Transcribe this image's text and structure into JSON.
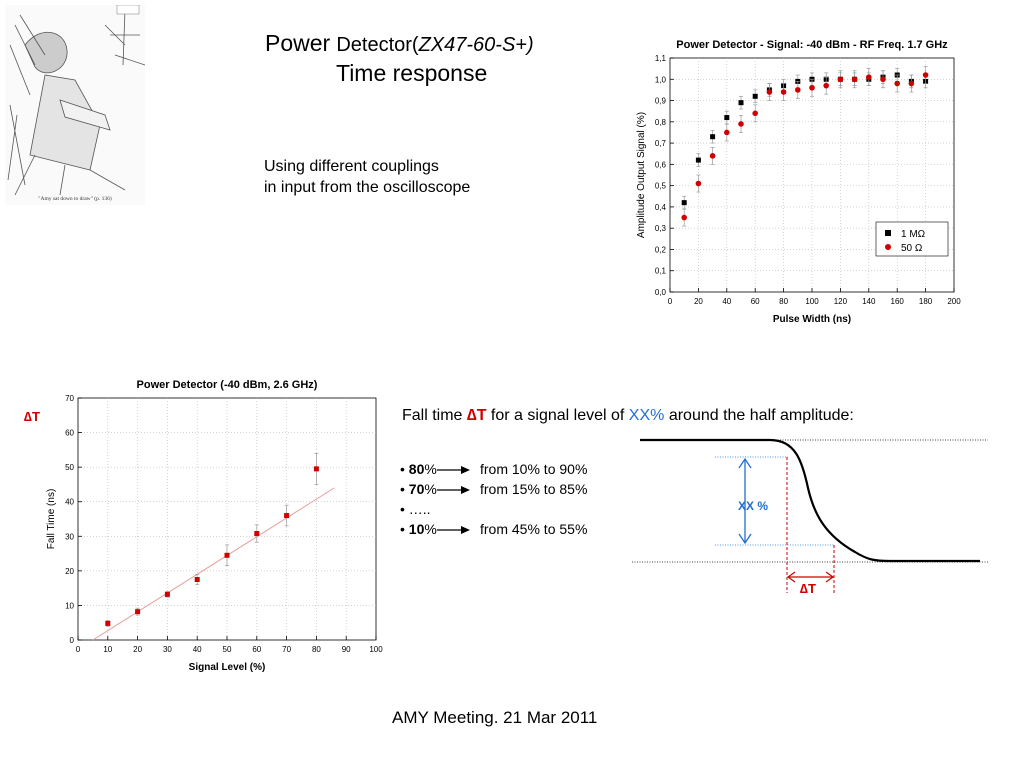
{
  "slide": {
    "title_word1": "Power",
    "title_word2": "Detector(",
    "title_model": "ZX47-60-S+)",
    "subtitle": "Time response",
    "desc_line1": "Using different couplings",
    "desc_line2": "in input from the oscilloscope",
    "footer": "AMY Meeting. 21 Mar 2011",
    "delta_t_label": "∆T",
    "fall_text_prefix": "Fall time",
    "fall_text_delta": "∆T",
    "fall_text_mid": "for a signal level of",
    "fall_text_xx": "XX%",
    "fall_text_suffix": "around the half amplitude:",
    "bullets": [
      {
        "pct": "80",
        "unit": "%",
        "range": "from 10% to 90%"
      },
      {
        "pct": "70",
        "unit": "%",
        "range": "from 15% to 85%"
      },
      {
        "pct": "…..",
        "unit": "",
        "range": ""
      },
      {
        "pct": "10",
        "unit": "%",
        "range": "from 45% to 55%"
      }
    ],
    "sketch_caption": "\"Amy sat down to draw\" (p. 136)",
    "diagram_xx_label": "XX %",
    "diagram_dt_label": "∆T",
    "colors": {
      "red": "#d00000",
      "blue": "#1f6fd0"
    }
  },
  "chart_data": [
    {
      "type": "scatter",
      "title": "Power Detector - Signal: -40 dBm - RF Freq. 1.7 GHz",
      "xlabel": "Pulse Width (ns)",
      "ylabel": "Amplitude Output Signal (%)",
      "xlim": [
        0,
        200
      ],
      "ylim": [
        0,
        1.1
      ],
      "xticks": [
        "0",
        "20",
        "40",
        "60",
        "80",
        "100",
        "120",
        "140",
        "160",
        "180",
        "200"
      ],
      "yticks": [
        "0,0",
        "0,1",
        "0,2",
        "0,3",
        "0,4",
        "0,5",
        "0,6",
        "0,7",
        "0,8",
        "0,9",
        "1,0",
        "1,1"
      ],
      "grid": true,
      "legend_position": "bottom-right",
      "series": [
        {
          "name": "1  MΩ",
          "color": "#000000",
          "marker": "square",
          "x": [
            10,
            20,
            30,
            40,
            50,
            60,
            70,
            80,
            90,
            100,
            110,
            120,
            130,
            140,
            150,
            160,
            170,
            180
          ],
          "y": [
            0.42,
            0.62,
            0.73,
            0.82,
            0.89,
            0.92,
            0.95,
            0.97,
            0.99,
            1.0,
            1.0,
            1.0,
            1.0,
            1.0,
            1.01,
            1.02,
            0.99,
            0.99
          ],
          "err": [
            0.03,
            0.03,
            0.03,
            0.03,
            0.03,
            0.03,
            0.03,
            0.03,
            0.03,
            0.03,
            0.03,
            0.03,
            0.03,
            0.03,
            0.03,
            0.03,
            0.03,
            0.03
          ]
        },
        {
          "name": "50  Ω",
          "color": "#d00000",
          "marker": "circle",
          "x": [
            10,
            20,
            30,
            40,
            50,
            60,
            70,
            80,
            90,
            100,
            110,
            120,
            130,
            140,
            150,
            160,
            170,
            180
          ],
          "y": [
            0.35,
            0.51,
            0.64,
            0.75,
            0.79,
            0.84,
            0.94,
            0.94,
            0.95,
            0.96,
            0.97,
            1.0,
            1.0,
            1.01,
            1.0,
            0.98,
            0.98,
            1.02
          ],
          "err": [
            0.04,
            0.04,
            0.04,
            0.04,
            0.04,
            0.04,
            0.04,
            0.04,
            0.04,
            0.04,
            0.04,
            0.04,
            0.04,
            0.04,
            0.04,
            0.04,
            0.04,
            0.04
          ]
        }
      ]
    },
    {
      "type": "scatter",
      "title": "Power Detector (-40 dBm, 2.6 GHz)",
      "xlabel": "Signal Level (%)",
      "ylabel": "Fall Time (ns)",
      "xlim": [
        0,
        100
      ],
      "ylim": [
        0,
        70
      ],
      "xticks": [
        "0",
        "10",
        "20",
        "30",
        "40",
        "50",
        "60",
        "70",
        "80",
        "90",
        "100"
      ],
      "yticks": [
        "0",
        "10",
        "20",
        "30",
        "40",
        "50",
        "60",
        "70"
      ],
      "grid": true,
      "series": [
        {
          "color": "#d00000",
          "marker": "square",
          "x": [
            10,
            20,
            30,
            40,
            50,
            60,
            70,
            80
          ],
          "y": [
            4.8,
            8.2,
            13.2,
            17.5,
            24.5,
            30.8,
            36.0,
            49.5
          ],
          "err": [
            0.8,
            1.0,
            0.8,
            1.5,
            3.0,
            2.5,
            3.0,
            4.5
          ]
        }
      ],
      "fit_line": {
        "x": [
          5,
          86
        ],
        "y": [
          0,
          44
        ]
      }
    }
  ]
}
